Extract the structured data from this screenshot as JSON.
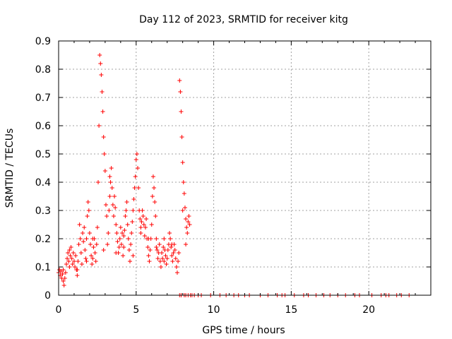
{
  "chart_data": {
    "type": "scatter",
    "title": "Day 112 of 2023, SRMTID for receiver kitg",
    "xlabel": "GPS time / hours",
    "ylabel": "SRMTID / TECUs",
    "xlim": [
      0,
      24
    ],
    "ylim": [
      0,
      0.9
    ],
    "xticks": [
      0,
      5,
      10,
      15,
      20
    ],
    "xtick_labels": [
      "0",
      "5",
      "10",
      "15",
      "20"
    ],
    "yticks": [
      0,
      0.1,
      0.2,
      0.3,
      0.4,
      0.5,
      0.6,
      0.7,
      0.8,
      0.9
    ],
    "ytick_labels": [
      "0",
      "0.1",
      "0.2",
      "0.3",
      "0.4",
      "0.5",
      "0.6",
      "0.7",
      "0.8",
      "0.9"
    ],
    "grid": true,
    "marker": "+",
    "series": [
      {
        "name": "SRMTID",
        "color": "#ff0000",
        "points": [
          [
            0.0,
            0.08
          ],
          [
            0.05,
            0.09
          ],
          [
            0.1,
            0.07
          ],
          [
            0.15,
            0.085
          ],
          [
            0.2,
            0.06
          ],
          [
            0.25,
            0.075
          ],
          [
            0.3,
            0.05
          ],
          [
            0.35,
            0.035
          ],
          [
            0.4,
            0.06
          ],
          [
            0.45,
            0.08
          ],
          [
            0.5,
            0.11
          ],
          [
            0.55,
            0.13
          ],
          [
            0.6,
            0.15
          ],
          [
            0.65,
            0.12
          ],
          [
            0.7,
            0.1
          ],
          [
            0.75,
            0.14
          ],
          [
            0.8,
            0.17
          ],
          [
            0.85,
            0.13
          ],
          [
            0.9,
            0.11
          ],
          [
            0.95,
            0.15
          ],
          [
            1.0,
            0.12
          ],
          [
            1.05,
            0.1
          ],
          [
            1.1,
            0.14
          ],
          [
            1.15,
            0.09
          ],
          [
            1.2,
            0.07
          ],
          [
            1.25,
            0.12
          ],
          [
            1.3,
            0.18
          ],
          [
            1.35,
            0.25
          ],
          [
            1.4,
            0.2
          ],
          [
            1.45,
            0.15
          ],
          [
            1.5,
            0.11
          ],
          [
            1.55,
            0.22
          ],
          [
            1.6,
            0.19
          ],
          [
            1.65,
            0.24
          ],
          [
            1.7,
            0.16
          ],
          [
            1.75,
            0.13
          ],
          [
            1.8,
            0.2
          ],
          [
            1.85,
            0.28
          ],
          [
            1.9,
            0.33
          ],
          [
            1.95,
            0.3
          ],
          [
            2.0,
            0.22
          ],
          [
            2.05,
            0.18
          ],
          [
            2.1,
            0.14
          ],
          [
            2.15,
            0.11
          ],
          [
            2.2,
            0.13
          ],
          [
            2.25,
            0.17
          ],
          [
            2.3,
            0.2
          ],
          [
            2.35,
            0.15
          ],
          [
            2.4,
            0.12
          ],
          [
            2.45,
            0.18
          ],
          [
            2.5,
            0.24
          ],
          [
            2.55,
            0.4
          ],
          [
            2.6,
            0.6
          ],
          [
            2.65,
            0.85
          ],
          [
            2.7,
            0.82
          ],
          [
            2.75,
            0.78
          ],
          [
            2.8,
            0.72
          ],
          [
            2.85,
            0.65
          ],
          [
            2.9,
            0.56
          ],
          [
            2.95,
            0.5
          ],
          [
            3.0,
            0.44
          ],
          [
            3.05,
            0.32
          ],
          [
            3.1,
            0.28
          ],
          [
            3.15,
            0.18
          ],
          [
            3.2,
            0.22
          ],
          [
            3.25,
            0.3
          ],
          [
            3.3,
            0.35
          ],
          [
            3.35,
            0.4
          ],
          [
            3.4,
            0.45
          ],
          [
            3.45,
            0.38
          ],
          [
            3.5,
            0.32
          ],
          [
            3.55,
            0.28
          ],
          [
            3.6,
            0.35
          ],
          [
            3.65,
            0.31
          ],
          [
            3.7,
            0.25
          ],
          [
            3.75,
            0.22
          ],
          [
            3.8,
            0.19
          ],
          [
            3.85,
            0.15
          ],
          [
            3.9,
            0.17
          ],
          [
            3.95,
            0.2
          ],
          [
            4.0,
            0.24
          ],
          [
            4.05,
            0.18
          ],
          [
            4.1,
            0.22
          ],
          [
            4.15,
            0.14
          ],
          [
            4.2,
            0.21
          ],
          [
            4.25,
            0.23
          ],
          [
            4.3,
            0.28
          ],
          [
            4.35,
            0.3
          ],
          [
            4.4,
            0.33
          ],
          [
            4.45,
            0.25
          ],
          [
            4.5,
            0.2
          ],
          [
            4.55,
            0.16
          ],
          [
            4.6,
            0.12
          ],
          [
            4.65,
            0.18
          ],
          [
            4.7,
            0.22
          ],
          [
            4.75,
            0.26
          ],
          [
            4.8,
            0.3
          ],
          [
            4.85,
            0.34
          ],
          [
            4.9,
            0.38
          ],
          [
            4.95,
            0.42
          ],
          [
            5.0,
            0.48
          ],
          [
            5.05,
            0.5
          ],
          [
            5.1,
            0.45
          ],
          [
            5.15,
            0.38
          ],
          [
            5.2,
            0.3
          ],
          [
            5.25,
            0.27
          ],
          [
            5.3,
            0.22
          ],
          [
            5.35,
            0.26
          ],
          [
            5.4,
            0.3
          ],
          [
            5.45,
            0.28
          ],
          [
            5.5,
            0.25
          ],
          [
            5.55,
            0.21
          ],
          [
            5.6,
            0.24
          ],
          [
            5.65,
            0.27
          ],
          [
            5.7,
            0.2
          ],
          [
            5.75,
            0.17
          ],
          [
            5.8,
            0.14
          ],
          [
            5.85,
            0.12
          ],
          [
            5.9,
            0.16
          ],
          [
            5.95,
            0.2
          ],
          [
            6.0,
            0.25
          ],
          [
            6.05,
            0.35
          ],
          [
            6.1,
            0.42
          ],
          [
            6.15,
            0.38
          ],
          [
            6.2,
            0.33
          ],
          [
            6.25,
            0.28
          ],
          [
            6.3,
            0.2
          ],
          [
            6.35,
            0.16
          ],
          [
            6.4,
            0.13
          ],
          [
            6.45,
            0.15
          ],
          [
            6.5,
            0.18
          ],
          [
            6.55,
            0.12
          ],
          [
            6.6,
            0.1
          ],
          [
            6.65,
            0.15
          ],
          [
            6.7,
            0.13
          ],
          [
            6.75,
            0.17
          ],
          [
            6.8,
            0.2
          ],
          [
            6.85,
            0.16
          ],
          [
            6.9,
            0.14
          ],
          [
            6.95,
            0.11
          ],
          [
            7.0,
            0.13
          ],
          [
            7.05,
            0.16
          ],
          [
            7.1,
            0.18
          ],
          [
            7.15,
            0.22
          ],
          [
            7.2,
            0.2
          ],
          [
            7.25,
            0.17
          ],
          [
            7.3,
            0.14
          ],
          [
            7.35,
            0.12
          ],
          [
            7.4,
            0.15
          ],
          [
            7.45,
            0.18
          ],
          [
            7.5,
            0.16
          ],
          [
            7.55,
            0.13
          ],
          [
            7.6,
            0.1
          ],
          [
            7.65,
            0.08
          ],
          [
            7.7,
            0.12
          ],
          [
            7.75,
            0.15
          ],
          [
            7.8,
            0.76
          ],
          [
            7.85,
            0.72
          ],
          [
            7.9,
            0.65
          ],
          [
            7.95,
            0.56
          ],
          [
            8.0,
            0.47
          ],
          [
            8.05,
            0.4
          ],
          [
            8.1,
            0.36
          ],
          [
            8.15,
            0.31
          ],
          [
            8.2,
            0.27
          ],
          [
            8.25,
            0.24
          ],
          [
            8.3,
            0.22
          ],
          [
            8.35,
            0.26
          ],
          [
            8.4,
            0.28
          ],
          [
            8.45,
            0.25
          ],
          [
            0.3,
            0.09
          ],
          [
            0.7,
            0.16
          ],
          [
            1.2,
            0.09
          ],
          [
            1.8,
            0.12
          ],
          [
            2.2,
            0.2
          ],
          [
            2.9,
            0.16
          ],
          [
            3.3,
            0.42
          ],
          [
            3.7,
            0.15
          ],
          [
            4.2,
            0.17
          ],
          [
            4.8,
            0.14
          ],
          [
            5.3,
            0.24
          ],
          [
            5.8,
            0.2
          ],
          [
            6.3,
            0.17
          ],
          [
            6.8,
            0.12
          ],
          [
            7.3,
            0.18
          ],
          [
            8.0,
            0.3
          ],
          [
            8.2,
            0.18
          ]
        ]
      }
    ],
    "baseline_zero_points_x": [
      7.8,
      7.9,
      8.1,
      8.2,
      8.35,
      8.5,
      8.6,
      8.75,
      9.0,
      9.2,
      9.8,
      10.4,
      10.8,
      11.3,
      11.6,
      12.0,
      12.3,
      13.0,
      13.5,
      14.1,
      14.4,
      14.6,
      15.2,
      15.8,
      16.1,
      16.6,
      17.1,
      17.5,
      18.0,
      18.5,
      19.1,
      19.4,
      20.2,
      20.8,
      21.1,
      21.3,
      21.8,
      22.1,
      22.6
    ]
  }
}
